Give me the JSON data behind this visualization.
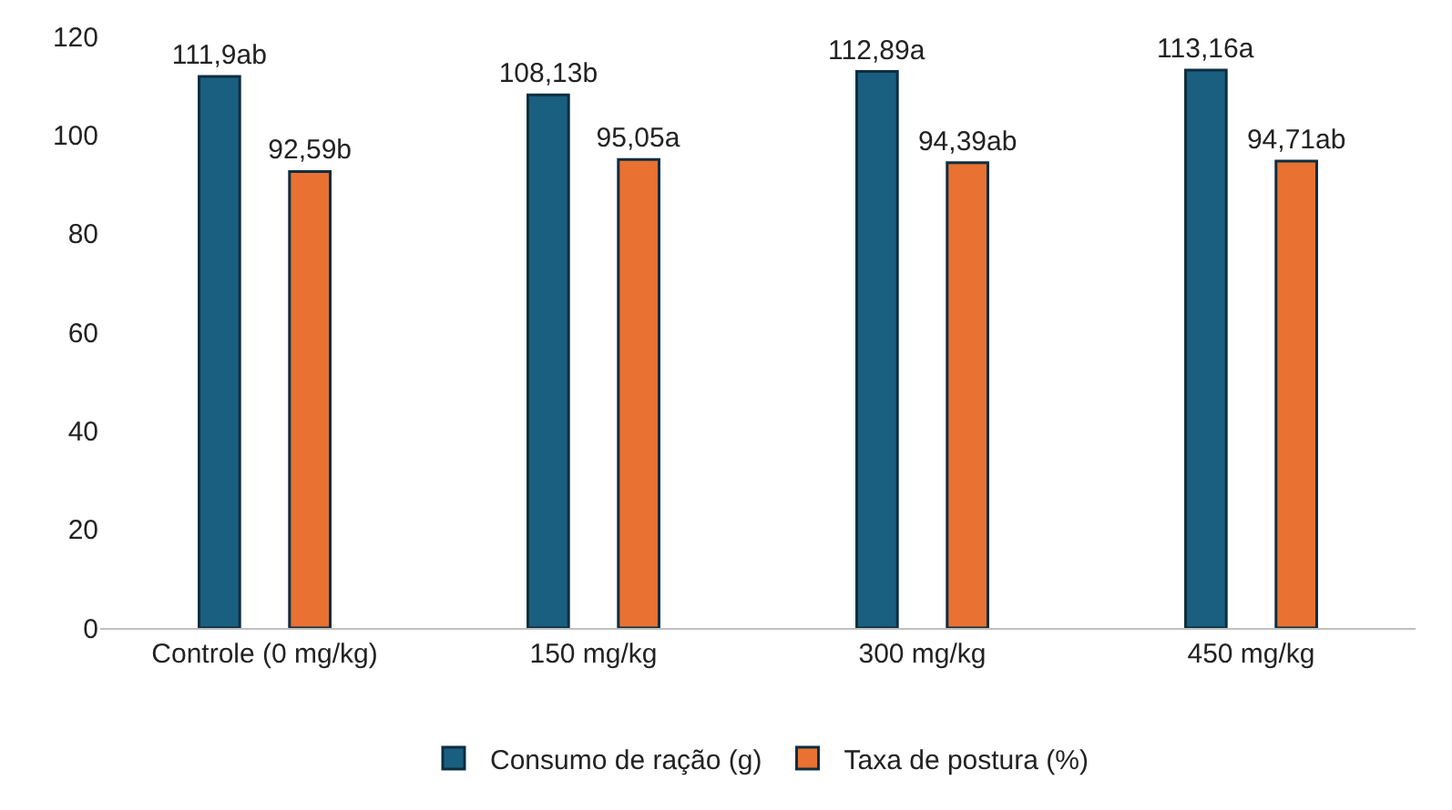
{
  "chart_data": {
    "type": "bar",
    "categories": [
      "Controle (0 mg/kg)",
      "150 mg/kg",
      "300 mg/kg",
      "450 mg/kg"
    ],
    "series": [
      {
        "name": "Consumo de ração (g)",
        "color": "#1a5f80",
        "values": [
          111.9,
          108.13,
          112.89,
          113.16
        ],
        "value_labels": [
          "111,9ab",
          "108,13b",
          "112,89a",
          "113,16a"
        ]
      },
      {
        "name": "Taxa de postura (%)",
        "color": "#e97132",
        "values": [
          92.59,
          95.05,
          94.39,
          94.71
        ],
        "value_labels": [
          "92,59b",
          "95,05a",
          "94,39ab",
          "94,71ab"
        ]
      }
    ],
    "ylim": [
      0,
      120
    ],
    "yticks": [
      0,
      20,
      40,
      60,
      80,
      100,
      120
    ],
    "grid": false,
    "legend": "bottom"
  }
}
